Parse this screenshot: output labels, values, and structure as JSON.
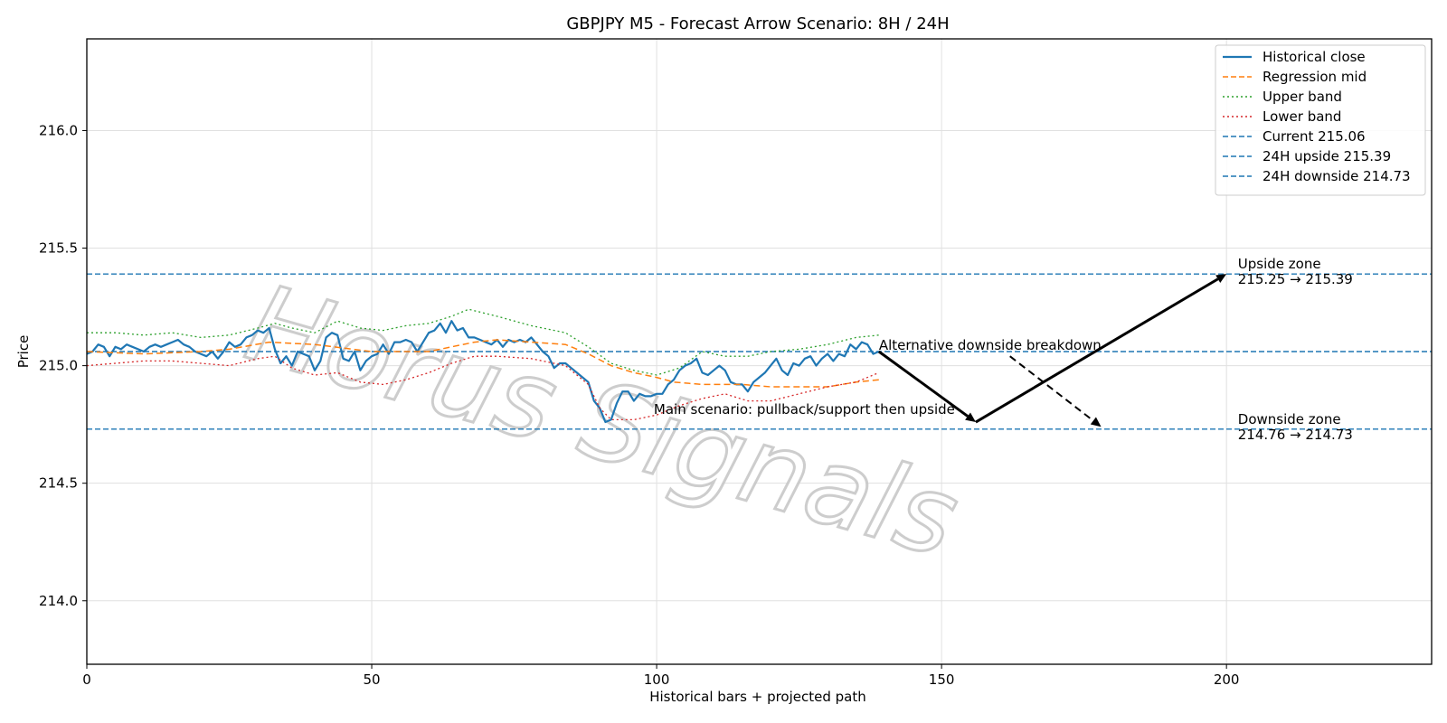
{
  "chart_data": {
    "type": "line",
    "title": "GBPJPY M5 - Forecast Arrow Scenario: 8H / 24H",
    "xlabel": "Historical bars + projected path",
    "ylabel": "Price",
    "xlim": [
      0,
      236
    ],
    "ylim": [
      213.73,
      216.39
    ],
    "grid": true,
    "legend_position": "top-right",
    "x_ticks": [
      0,
      50,
      100,
      150,
      200
    ],
    "x_tick_labels": [
      "0",
      "50",
      "100",
      "150",
      "200"
    ],
    "y_ticks": [
      214.0,
      214.5,
      215.0,
      215.5,
      216.0
    ],
    "y_tick_labels": [
      "214.0",
      "214.5",
      "215.0",
      "215.5",
      "216.0"
    ],
    "watermark": "Horus Signals",
    "colors": {
      "historical": "#1f77b4",
      "regression": "#ff7f0e",
      "upper": "#2ca02c",
      "lower": "#d62728",
      "hline": "#1f77b4",
      "arrow": "#000000"
    },
    "series": [
      {
        "name": "Historical close",
        "style": "solid",
        "x": [
          0,
          1,
          2,
          3,
          4,
          5,
          6,
          7,
          8,
          9,
          10,
          11,
          12,
          13,
          14,
          15,
          16,
          17,
          18,
          19,
          20,
          21,
          22,
          23,
          24,
          25,
          26,
          27,
          28,
          29,
          30,
          31,
          32,
          33,
          34,
          35,
          36,
          37,
          38,
          39,
          40,
          41,
          42,
          43,
          44,
          45,
          46,
          47,
          48,
          49,
          50,
          51,
          52,
          53,
          54,
          55,
          56,
          57,
          58,
          59,
          60,
          61,
          62,
          63,
          64,
          65,
          66,
          67,
          68,
          69,
          70,
          71,
          72,
          73,
          74,
          75,
          76,
          77,
          78,
          79,
          80,
          81,
          82,
          83,
          84,
          85,
          86,
          87,
          88,
          89,
          90,
          91,
          92,
          93,
          94,
          95,
          96,
          97,
          98,
          99,
          100,
          101,
          102,
          103,
          104,
          105,
          106,
          107,
          108,
          109,
          110,
          111,
          112,
          113,
          114,
          115,
          116,
          117,
          118,
          119,
          120,
          121,
          122,
          123,
          124,
          125,
          126,
          127,
          128,
          129,
          130,
          131,
          132,
          133,
          134,
          135,
          136,
          137,
          138,
          139
        ],
        "y": [
          215.05,
          215.06,
          215.09,
          215.08,
          215.04,
          215.08,
          215.07,
          215.09,
          215.08,
          215.07,
          215.06,
          215.08,
          215.09,
          215.08,
          215.09,
          215.1,
          215.11,
          215.09,
          215.08,
          215.06,
          215.05,
          215.04,
          215.06,
          215.03,
          215.06,
          215.1,
          215.08,
          215.09,
          215.12,
          215.13,
          215.15,
          215.14,
          215.16,
          215.07,
          215.01,
          215.04,
          215.0,
          215.06,
          215.05,
          215.04,
          214.98,
          215.02,
          215.12,
          215.14,
          215.13,
          215.03,
          215.02,
          215.06,
          214.98,
          215.02,
          215.04,
          215.05,
          215.09,
          215.05,
          215.1,
          215.1,
          215.11,
          215.1,
          215.06,
          215.1,
          215.14,
          215.15,
          215.18,
          215.14,
          215.19,
          215.15,
          215.16,
          215.12,
          215.12,
          215.11,
          215.1,
          215.09,
          215.11,
          215.08,
          215.11,
          215.1,
          215.11,
          215.1,
          215.12,
          215.09,
          215.06,
          215.04,
          214.99,
          215.01,
          215.01,
          214.99,
          214.97,
          214.95,
          214.93,
          214.85,
          214.82,
          214.76,
          214.77,
          214.84,
          214.89,
          214.89,
          214.85,
          214.88,
          214.87,
          214.87,
          214.88,
          214.88,
          214.92,
          214.94,
          214.98,
          215.0,
          215.01,
          215.03,
          214.97,
          214.96,
          214.98,
          215.0,
          214.98,
          214.93,
          214.92,
          214.92,
          214.89,
          214.93,
          214.95,
          214.97,
          215.0,
          215.03,
          214.98,
          214.96,
          215.01,
          215.0,
          215.03,
          215.04,
          215.0,
          215.03,
          215.05,
          215.02,
          215.05,
          215.04,
          215.09,
          215.07,
          215.1,
          215.09,
          215.05,
          215.06
        ]
      },
      {
        "name": "Regression mid",
        "style": "dashed",
        "x": [
          0,
          10,
          20,
          25,
          32,
          40,
          50,
          55,
          60,
          68,
          72,
          78,
          84,
          88,
          92,
          96,
          100,
          103,
          108,
          115,
          120,
          125,
          130,
          135,
          139
        ],
        "y": [
          215.06,
          215.05,
          215.06,
          215.07,
          215.1,
          215.09,
          215.06,
          215.06,
          215.06,
          215.1,
          215.11,
          215.1,
          215.09,
          215.05,
          215.0,
          214.97,
          214.95,
          214.93,
          214.92,
          214.92,
          214.91,
          214.91,
          214.91,
          214.93,
          214.94
        ]
      },
      {
        "name": "Upper band",
        "style": "dotted",
        "x": [
          0,
          5,
          10,
          15,
          20,
          25,
          30,
          33,
          36,
          40,
          44,
          48,
          52,
          56,
          60,
          64,
          67,
          72,
          78,
          84,
          88,
          92,
          96,
          100,
          104,
          108,
          112,
          116,
          120,
          125,
          130,
          135,
          139
        ],
        "y": [
          215.14,
          215.14,
          215.13,
          215.14,
          215.12,
          215.13,
          215.16,
          215.18,
          215.16,
          215.14,
          215.19,
          215.16,
          215.15,
          215.17,
          215.18,
          215.21,
          215.24,
          215.21,
          215.17,
          215.14,
          215.08,
          215.01,
          214.98,
          214.96,
          214.99,
          215.06,
          215.04,
          215.04,
          215.06,
          215.07,
          215.09,
          215.12,
          215.13
        ]
      },
      {
        "name": "Lower band",
        "style": "dotted",
        "x": [
          0,
          5,
          10,
          15,
          20,
          25,
          30,
          33,
          36,
          40,
          44,
          48,
          52,
          56,
          60,
          64,
          68,
          72,
          78,
          84,
          88,
          90,
          92,
          96,
          100,
          104,
          108,
          112,
          116,
          120,
          125,
          130,
          135,
          139
        ],
        "y": [
          215.0,
          215.01,
          215.02,
          215.02,
          215.01,
          215.0,
          215.03,
          215.04,
          214.99,
          214.96,
          214.97,
          214.93,
          214.92,
          214.94,
          214.97,
          215.01,
          215.04,
          215.04,
          215.03,
          215.0,
          214.92,
          214.82,
          214.77,
          214.77,
          214.79,
          214.83,
          214.86,
          214.88,
          214.85,
          214.85,
          214.88,
          214.91,
          214.93,
          214.97
        ]
      }
    ],
    "hlines": [
      {
        "name": "Current 215.06",
        "y": 215.06
      },
      {
        "name": "24H upside 215.39",
        "y": 215.39
      },
      {
        "name": "24H downside 214.73",
        "y": 214.73
      }
    ],
    "arrows": [
      {
        "from": [
          139,
          215.06
        ],
        "to": [
          156,
          214.76
        ],
        "style": "solid"
      },
      {
        "from": [
          156,
          214.76
        ],
        "to": [
          200,
          215.39
        ],
        "style": "solid"
      },
      {
        "from": [
          162,
          215.04
        ],
        "to": [
          178,
          214.74
        ],
        "style": "dashed"
      }
    ],
    "annotations": [
      {
        "text": "Alternative downside breakdown",
        "x": 139,
        "y": 215.06
      },
      {
        "text": "Main scenario: pullback/support then upside",
        "x": 99.5,
        "y": 214.76
      },
      {
        "text": "Upside zone",
        "x": 202,
        "y": 215.39
      },
      {
        "text": "215.25 → 215.39",
        "x": 202,
        "y": 215.39
      },
      {
        "text": "Downside zone",
        "x": 202,
        "y": 214.73
      },
      {
        "text": "214.76 → 214.73",
        "x": 202,
        "y": 214.73
      }
    ]
  }
}
